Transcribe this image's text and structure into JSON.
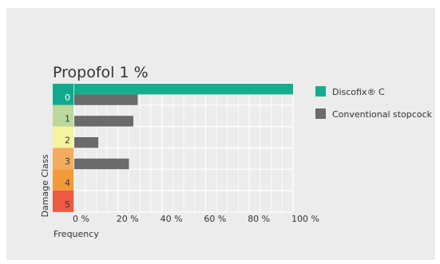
{
  "chart_data": {
    "type": "bar",
    "title": "Propofol 1 %",
    "xlabel": "Frequency",
    "ylabel": "Damage Class",
    "categories": [
      "0",
      "1",
      "2",
      "3",
      "4",
      "5"
    ],
    "category_colors": [
      "#12a88d",
      "#bcd89a",
      "#f6f3a0",
      "#f5ac5e",
      "#f29a3a",
      "#ec5a41"
    ],
    "series": [
      {
        "name": "Discofix® C",
        "color": "#16ad8f",
        "values": [
          100,
          0,
          0,
          0,
          0,
          0
        ]
      },
      {
        "name": "Conventional stopcock",
        "color": "#6b6b6b",
        "values": [
          29,
          27,
          11,
          25,
          0,
          0
        ]
      }
    ],
    "xlim": [
      0,
      100
    ],
    "xticks": [
      0,
      20,
      40,
      60,
      80,
      100
    ],
    "xtick_labels": [
      "0 %",
      "20 %",
      "40 %",
      "60 %",
      "80 %",
      "100 %"
    ],
    "grid": true,
    "legend_position": "right"
  }
}
